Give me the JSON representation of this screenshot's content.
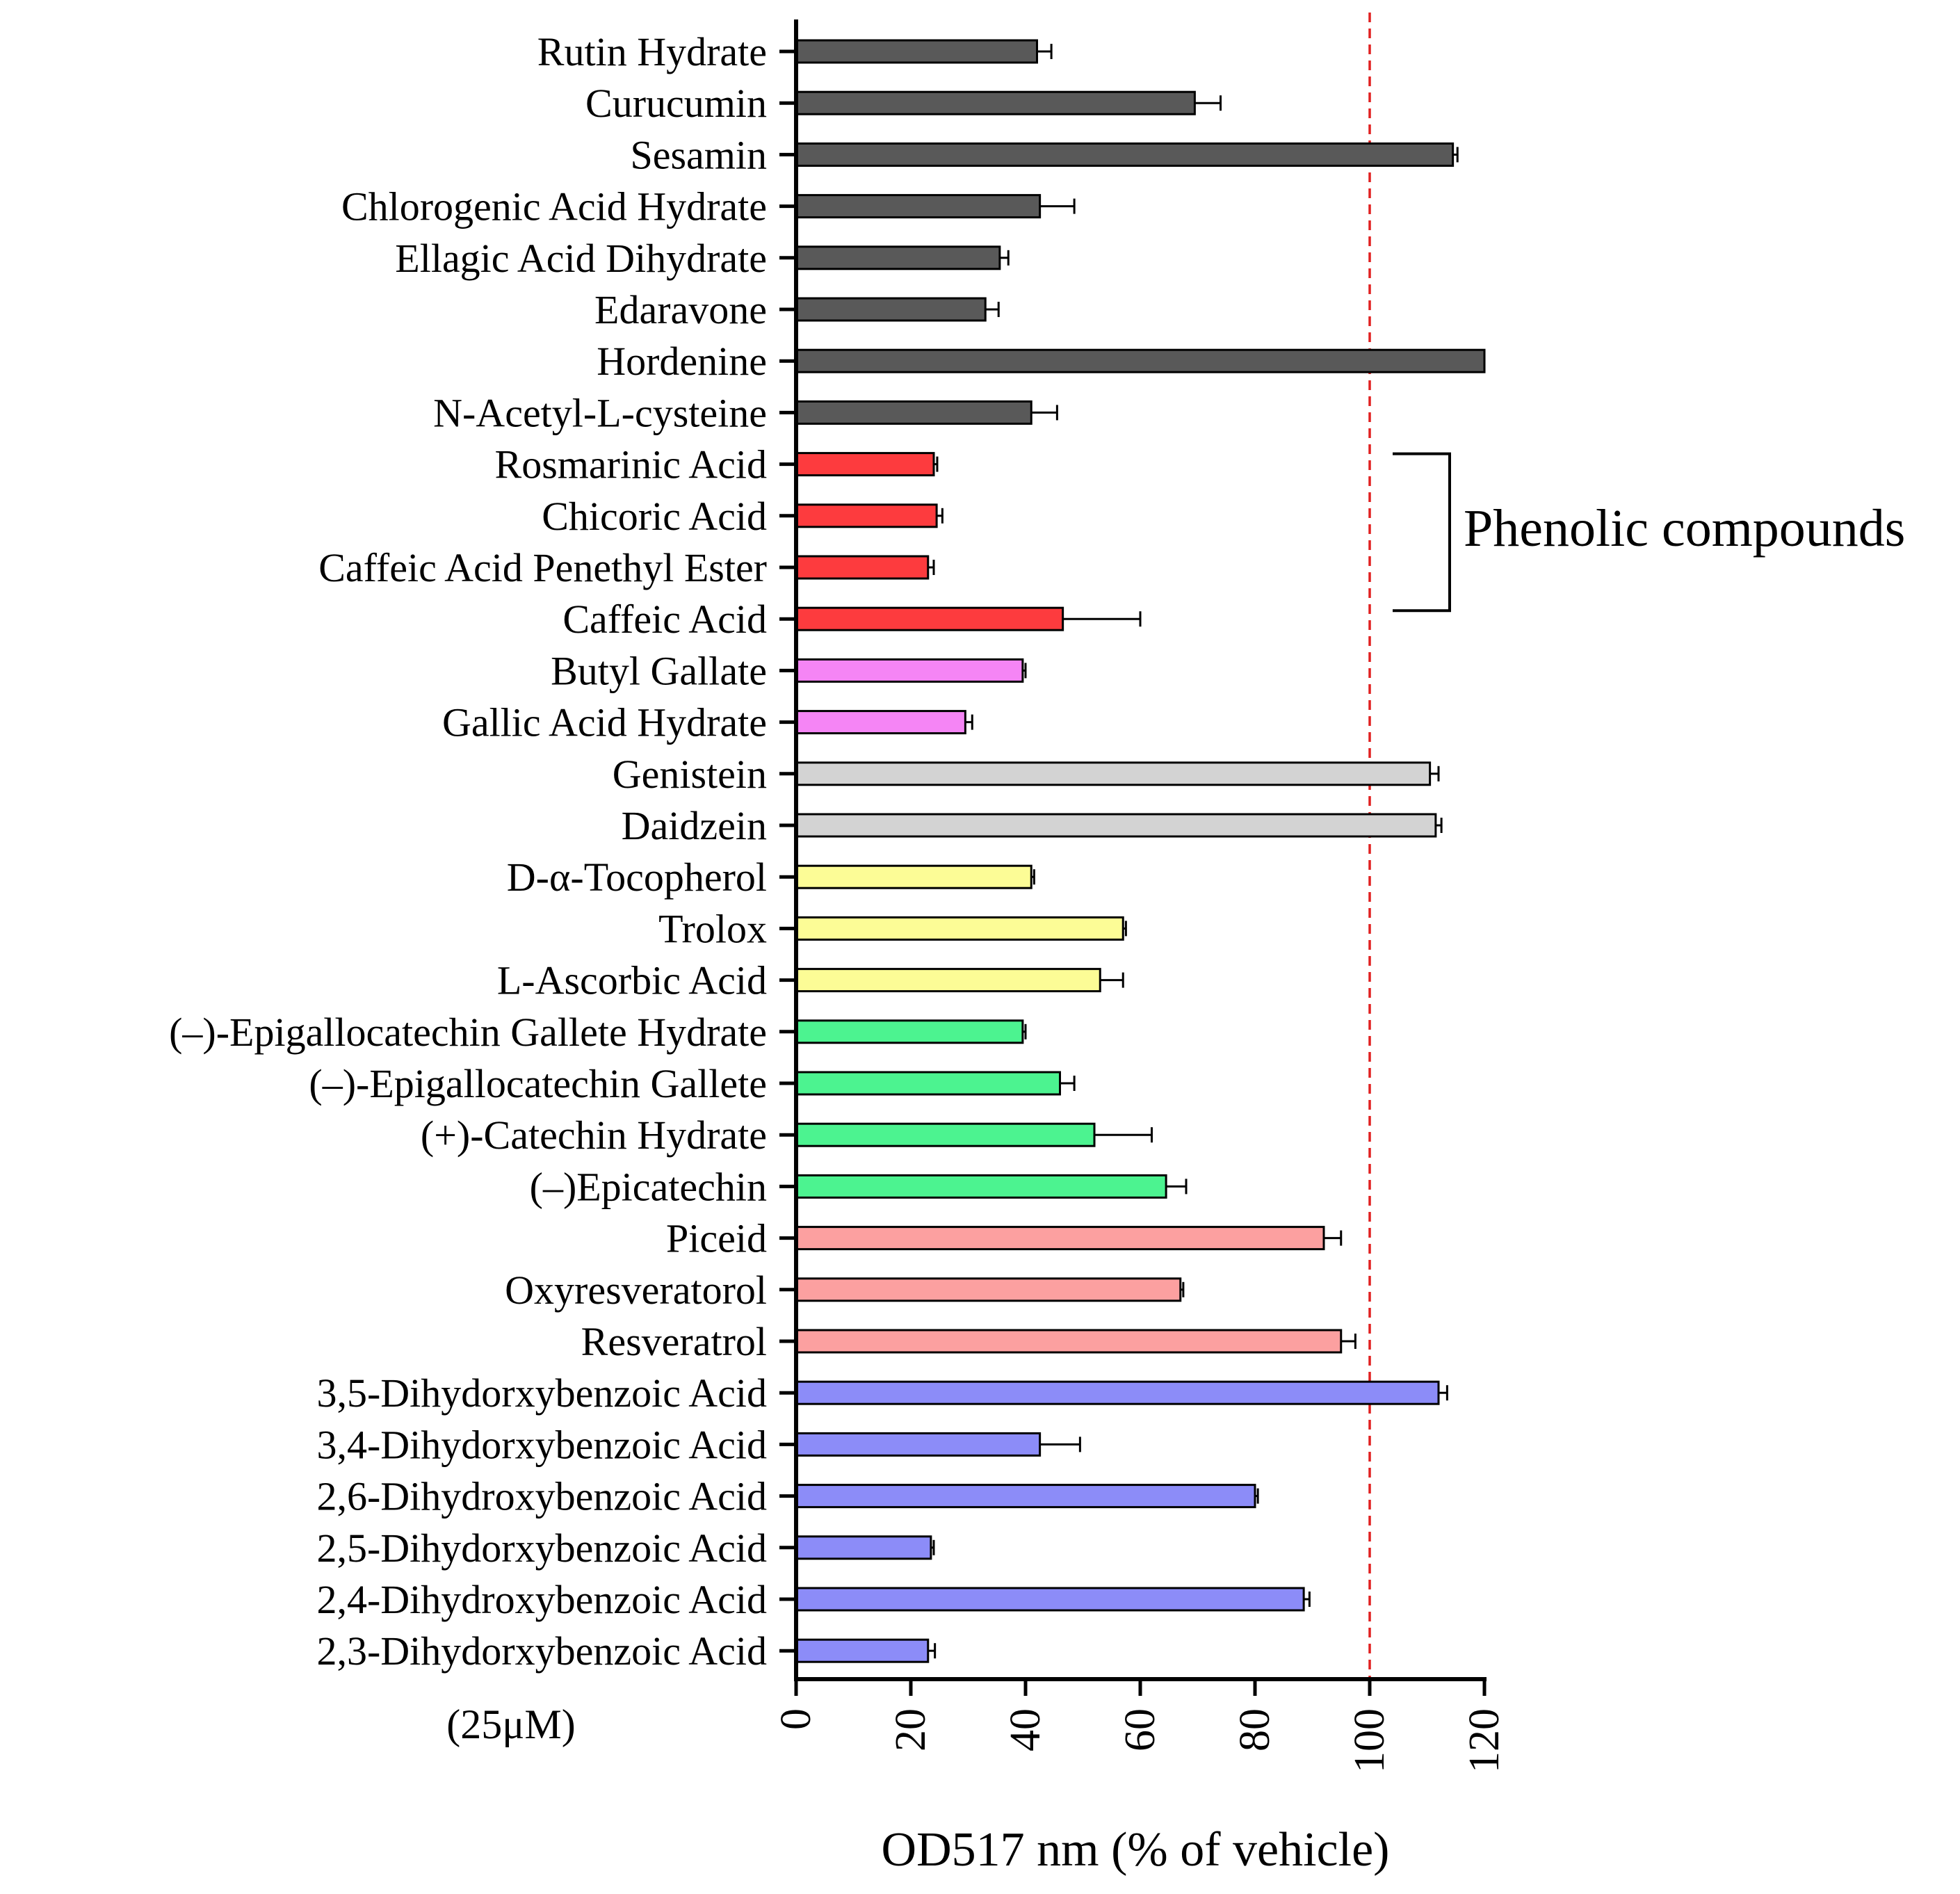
{
  "chart_data": {
    "type": "bar",
    "orientation": "horizontal",
    "xlabel": "OD517 nm (% of vehicle)",
    "xlim": [
      0,
      120
    ],
    "xticks": [
      "0",
      "20",
      "40",
      "60",
      "80",
      "100",
      "120"
    ],
    "reference_line": {
      "value": 100,
      "style": "dashed",
      "color": "#e02020"
    },
    "note": "(25μM)",
    "bracket": {
      "label": "Phenolic compounds",
      "from": "Rosmarinic Acid",
      "to": "Caffeic Acid"
    },
    "grid": false,
    "bars": [
      {
        "label": "Rutin Hydrate",
        "value": 42,
        "error": 2.5,
        "color": "#595959"
      },
      {
        "label": "Curucumin",
        "value": 69.5,
        "error": 4.5,
        "color": "#595959"
      },
      {
        "label": "Sesamin",
        "value": 114.5,
        "error": 0.8,
        "color": "#595959"
      },
      {
        "label": "Chlorogenic Acid Hydrate",
        "value": 42.5,
        "error": 6,
        "color": "#595959"
      },
      {
        "label": "Ellagic Acid Dihydrate",
        "value": 35.5,
        "error": 1.5,
        "color": "#595959"
      },
      {
        "label": "Edaravone",
        "value": 33,
        "error": 2.3,
        "color": "#595959"
      },
      {
        "label": "Hordenine",
        "value": 120,
        "error": 0,
        "color": "#595959"
      },
      {
        "label": "N-Acetyl-L-cysteine",
        "value": 41,
        "error": 4.5,
        "color": "#595959"
      },
      {
        "label": "Rosmarinic Acid",
        "value": 24,
        "error": 0.6,
        "color": "#fd3b3e"
      },
      {
        "label": "Chicoric Acid",
        "value": 24.5,
        "error": 1.0,
        "color": "#fd3b3e"
      },
      {
        "label": "Caffeic Acid Penethyl Ester",
        "value": 23,
        "error": 1.0,
        "color": "#fd3b3e"
      },
      {
        "label": "Caffeic Acid",
        "value": 46.5,
        "error": 13.5,
        "color": "#fd3b3e"
      },
      {
        "label": "Butyl Gallate",
        "value": 39.5,
        "error": 0.5,
        "color": "#f585f5"
      },
      {
        "label": "Gallic Acid Hydrate",
        "value": 29.5,
        "error": 1.2,
        "color": "#f585f5"
      },
      {
        "label": "Genistein",
        "value": 110.5,
        "error": 1.5,
        "color": "#d3d3d3"
      },
      {
        "label": "Daidzein ",
        "value": 111.5,
        "error": 1.0,
        "color": "#d3d3d3"
      },
      {
        "label": "D-α-Tocopherol",
        "value": 41,
        "error": 0.5,
        "color": "#fcfc96"
      },
      {
        "label": "Trolox",
        "value": 57,
        "error": 0.5,
        "color": "#fcfc96"
      },
      {
        "label": "L-Ascorbic Acid",
        "value": 53,
        "error": 4,
        "color": "#fcfc96"
      },
      {
        "label": "(–)-Epigallocatechin Gallete Hydrate",
        "value": 39.5,
        "error": 0.5,
        "color": "#4cf390"
      },
      {
        "label": "(–)-Epigallocatechin Gallete ",
        "value": 46,
        "error": 2.5,
        "color": "#4cf390"
      },
      {
        "label": "(+)-Catechin Hydrate",
        "value": 52,
        "error": 10,
        "color": "#4cf390"
      },
      {
        "label": "(–)Epicatechin",
        "value": 64.5,
        "error": 3.5,
        "color": "#4cf390"
      },
      {
        "label": "Piceid",
        "value": 92,
        "error": 3,
        "color": "#fca0a0"
      },
      {
        "label": "Oxyresveratorol",
        "value": 67,
        "error": 0.5,
        "color": "#fca0a0"
      },
      {
        "label": "Resveratrol",
        "value": 95,
        "error": 2.5,
        "color": "#fca0a0"
      },
      {
        "label": "3,5-Dihydorxybenzoic Acid",
        "value": 112,
        "error": 1.5,
        "color": "#8c8cf8"
      },
      {
        "label": "3,4-Dihydorxybenzoic Acid",
        "value": 42.5,
        "error": 7,
        "color": "#8c8cf8"
      },
      {
        "label": "2,6-Dihydroxybenzoic Acid",
        "value": 80,
        "error": 0.5,
        "color": "#8c8cf8"
      },
      {
        "label": "2,5-Dihydorxybenzoic Acid",
        "value": 23.5,
        "error": 0.5,
        "color": "#8c8cf8"
      },
      {
        "label": "2,4-Dihydroxybenzoic Acid",
        "value": 88.5,
        "error": 1.0,
        "color": "#8c8cf8"
      },
      {
        "label": "2,3-Dihydorxybenzoic Acid",
        "value": 23,
        "error": 1.2,
        "color": "#8c8cf8"
      }
    ]
  }
}
